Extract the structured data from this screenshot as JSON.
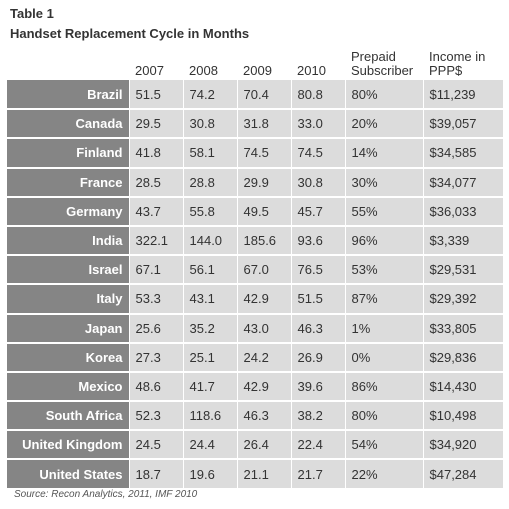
{
  "table_label": "Table 1",
  "table_title": "Handset Replacement Cycle in Months",
  "columns": [
    "2007",
    "2008",
    "2009",
    "2010",
    "Prepaid Subscriber",
    "Income in PPP$"
  ],
  "rows": [
    {
      "country": "Brazil",
      "values": [
        "51.5",
        "74.2",
        "70.4",
        "80.8",
        "80%",
        "$11,239"
      ]
    },
    {
      "country": "Canada",
      "values": [
        "29.5",
        "30.8",
        "31.8",
        "33.0",
        "20%",
        "$39,057"
      ]
    },
    {
      "country": "Finland",
      "values": [
        "41.8",
        "58.1",
        "74.5",
        "74.5",
        "14%",
        "$34,585"
      ]
    },
    {
      "country": "France",
      "values": [
        "28.5",
        "28.8",
        "29.9",
        "30.8",
        "30%",
        "$34,077"
      ]
    },
    {
      "country": "Germany",
      "values": [
        "43.7",
        "55.8",
        "49.5",
        "45.7",
        "55%",
        "$36,033"
      ]
    },
    {
      "country": "India",
      "values": [
        "322.1",
        "144.0",
        "185.6",
        "93.6",
        "96%",
        "$3,339"
      ]
    },
    {
      "country": "Israel",
      "values": [
        "67.1",
        "56.1",
        "67.0",
        "76.5",
        "53%",
        "$29,531"
      ]
    },
    {
      "country": "Italy",
      "values": [
        "53.3",
        "43.1",
        "42.9",
        "51.5",
        "87%",
        "$29,392"
      ]
    },
    {
      "country": "Japan",
      "values": [
        "25.6",
        "35.2",
        "43.0",
        "46.3",
        "1%",
        "$33,805"
      ]
    },
    {
      "country": "Korea",
      "values": [
        "27.3",
        "25.1",
        "24.2",
        "26.9",
        "0%",
        "$29,836"
      ]
    },
    {
      "country": "Mexico",
      "values": [
        "48.6",
        "41.7",
        "42.9",
        "39.6",
        "86%",
        "$14,430"
      ]
    },
    {
      "country": "South Africa",
      "values": [
        "52.3",
        "118.6",
        "46.3",
        "38.2",
        "80%",
        "$10,498"
      ]
    },
    {
      "country": "United Kingdom",
      "values": [
        "24.5",
        "24.4",
        "26.4",
        "22.4",
        "54%",
        "$34,920"
      ]
    },
    {
      "country": "United States",
      "values": [
        "18.7",
        "19.6",
        "21.1",
        "21.7",
        "22%",
        "$47,284"
      ]
    }
  ],
  "source": "Source: Recon Analytics, 2011, IMF 2010"
}
